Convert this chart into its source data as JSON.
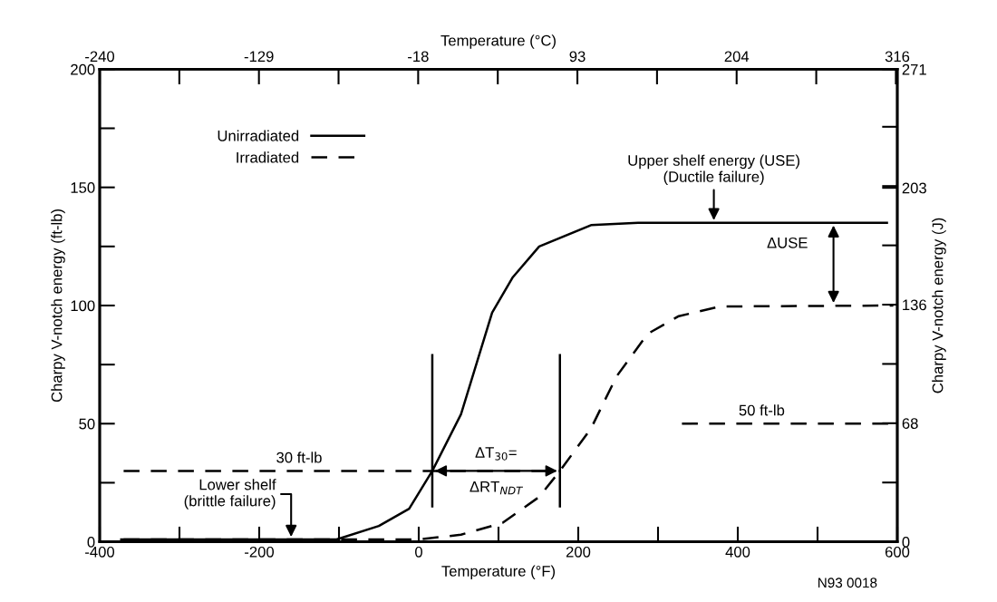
{
  "chart_data": {
    "type": "line",
    "xlabel": "Temperature (°F)",
    "x2label": "Temperature (°C)",
    "ylabel": "Charpy V-notch energy (ft-lb)",
    "y2label": "Charpy V-notch energy (J)",
    "xlim": [
      -400,
      600
    ],
    "xticks": [
      -400,
      -200,
      0,
      200,
      400,
      600
    ],
    "x2lim": [
      -240,
      316
    ],
    "x2ticks": [
      -240,
      -129,
      -18,
      93,
      204,
      316
    ],
    "ylim": [
      0,
      200
    ],
    "yticks": [
      0,
      50,
      100,
      150,
      200
    ],
    "y2lim": [
      0,
      271
    ],
    "y2ticks": [
      0,
      68,
      136,
      203,
      271
    ],
    "legend": "top left",
    "grid": false,
    "series": [
      {
        "name": "Unirradiated",
        "color": "#000000",
        "line_style": "solid",
        "x": [
          -373,
          -150,
          -103,
          -50,
          -12,
          17,
          53,
          92,
          118,
          151,
          216,
          275,
          587
        ],
        "values": [
          1,
          1,
          1,
          6.7,
          14,
          30,
          54,
          97,
          112,
          125,
          134,
          135,
          135
        ]
      },
      {
        "name": "Irradiated",
        "color": "#000000",
        "line_style": "dashed",
        "x": [
          -370,
          -100,
          0,
          53,
          105,
          151,
          177,
          216,
          248,
          287,
          326,
          378,
          595
        ],
        "values": [
          1,
          1,
          1,
          3,
          8,
          19,
          30,
          48,
          70,
          88,
          95.5,
          99.6,
          100
        ]
      },
      {
        "color": "#000000",
        "line_style": "dashed",
        "x": [
          -370,
          177
        ],
        "values": [
          30,
          30
        ]
      },
      {
        "color": "#000000",
        "line_style": "dashed",
        "x": [
          330,
          595
        ],
        "values": [
          50,
          50
        ]
      },
      {
        "color": "#000000",
        "line_style": "solid",
        "x": [
          17,
          17
        ],
        "values": [
          15,
          79
        ]
      },
      {
        "color": "#000000",
        "line_style": "solid",
        "x": [
          177,
          177
        ],
        "values": [
          15,
          79
        ]
      }
    ],
    "annotations": [
      {
        "text": "30 ft-lb",
        "x": -150,
        "y": 30
      },
      {
        "text": "50 ft-lb",
        "x": 430,
        "y": 50
      },
      {
        "text": "Upper shelf energy (USE)\n(Ductile failure)",
        "x": 370,
        "y": 135
      },
      "ΔUSE",
      {
        "text": "ΔT$_{30}$=",
        "x": 97,
        "y": 30
      },
      {
        "text": "ΔRT$_{NDT}$",
        "x": 97,
        "y": 30
      },
      {
        "text": "Lower shelf\n(brittle failure)",
        "x": -160,
        "y": 1
      },
      "N93 0018"
    ]
  }
}
